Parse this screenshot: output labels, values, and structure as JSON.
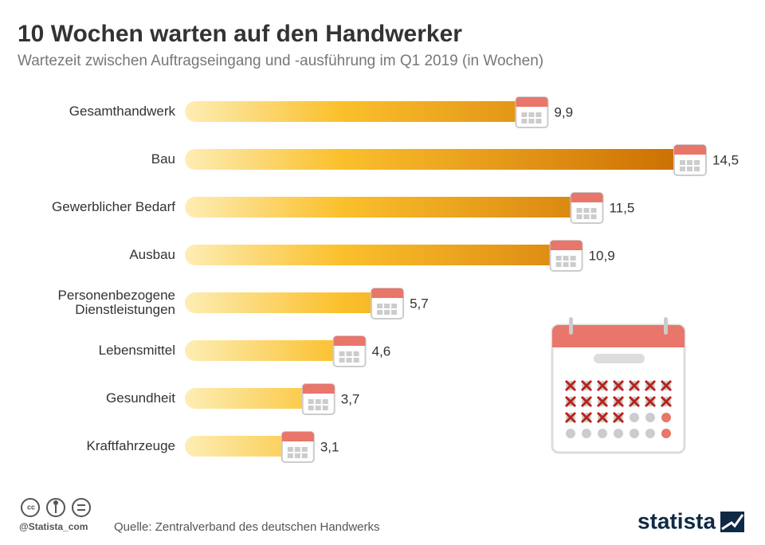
{
  "title": "10 Wochen warten auf den Handwerker",
  "subtitle": "Wartezeit zwischen Auftragseingang und -ausführung im Q1 2019 (in Wochen)",
  "chart_data": {
    "type": "bar",
    "orientation": "horizontal",
    "categories": [
      "Gesamthandwerk",
      "Bau",
      "Gewerblicher Bedarf",
      "Ausbau",
      "Personenbezogene Dienstleistungen",
      "Lebensmittel",
      "Gesundheit",
      "Kraftfahrzeuge"
    ],
    "values": [
      9.9,
      14.5,
      11.5,
      10.9,
      5.7,
      4.6,
      3.7,
      3.1
    ],
    "value_labels": [
      "9,9",
      "14,5",
      "11,5",
      "10,9",
      "5,7",
      "4,6",
      "3,7",
      "3,1"
    ],
    "colors": [
      "#fdeeb5",
      "#fbc02d",
      "#c96a00"
    ]
  },
  "footer": {
    "handle": "@Statista_com",
    "source": "Quelle: Zentralverband des deutschen Handwerks",
    "logo": "statista"
  }
}
